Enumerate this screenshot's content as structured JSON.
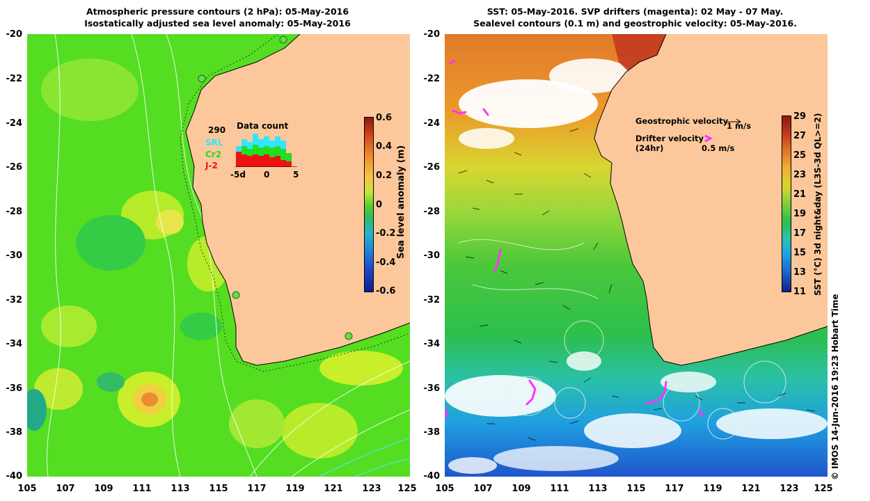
{
  "left_panel": {
    "title_line1": "Atmospheric pressure contours (2 hPa): 05-May-2016",
    "title_line2": "Isostatically adjusted sea level anomaly: 05-May-2016",
    "colorbar_label": "Sea level anomaly (m)",
    "colorbar_ticks": [
      "0.6",
      "0.4",
      "0.2",
      "0",
      "-0.2",
      "-0.4",
      "-0.6"
    ],
    "inset": {
      "title": "Data count",
      "count": "290",
      "legend": [
        {
          "name": "SRL",
          "color": "#33e6ff"
        },
        {
          "name": "Cr2",
          "color": "#22dd22"
        },
        {
          "name": "J-2",
          "color": "#ee1111"
        }
      ],
      "axis_ticks": [
        "-5d",
        "0",
        "5"
      ]
    }
  },
  "right_panel": {
    "title_line1": "SST: 05-May-2016. SVP drifters (magenta): 02 May - 07 May.",
    "title_line2": "Sealevel contours (0.1 m) and geostrophic velocity: 05-May-2016.",
    "colorbar_label": "SST (°C) 3d night&day (L3S-3d QL>=2)",
    "colorbar_ticks": [
      "29",
      "27",
      "25",
      "23",
      "21",
      "19",
      "17",
      "15",
      "13",
      "11"
    ],
    "geostrophic_label": "Geostrophic velocity",
    "geostrophic_scale": "1 m/s",
    "drifter_label": "Drifter velocity",
    "drifter_sub": "(24hr)",
    "drifter_scale": "0.5 m/s"
  },
  "y_ticks": [
    "-20",
    "-22",
    "-24",
    "-26",
    "-28",
    "-30",
    "-32",
    "-34",
    "-36",
    "-38",
    "-40"
  ],
  "x_ticks": [
    "105",
    "107",
    "109",
    "111",
    "113",
    "115",
    "117",
    "119",
    "121",
    "123",
    "125"
  ],
  "credit": "© IMOS 14-Jun-2016 19:23 Hobart Time",
  "colors": {
    "land": "#fcc89b",
    "coast": "#000000",
    "drifter": "#ff33ff"
  }
}
